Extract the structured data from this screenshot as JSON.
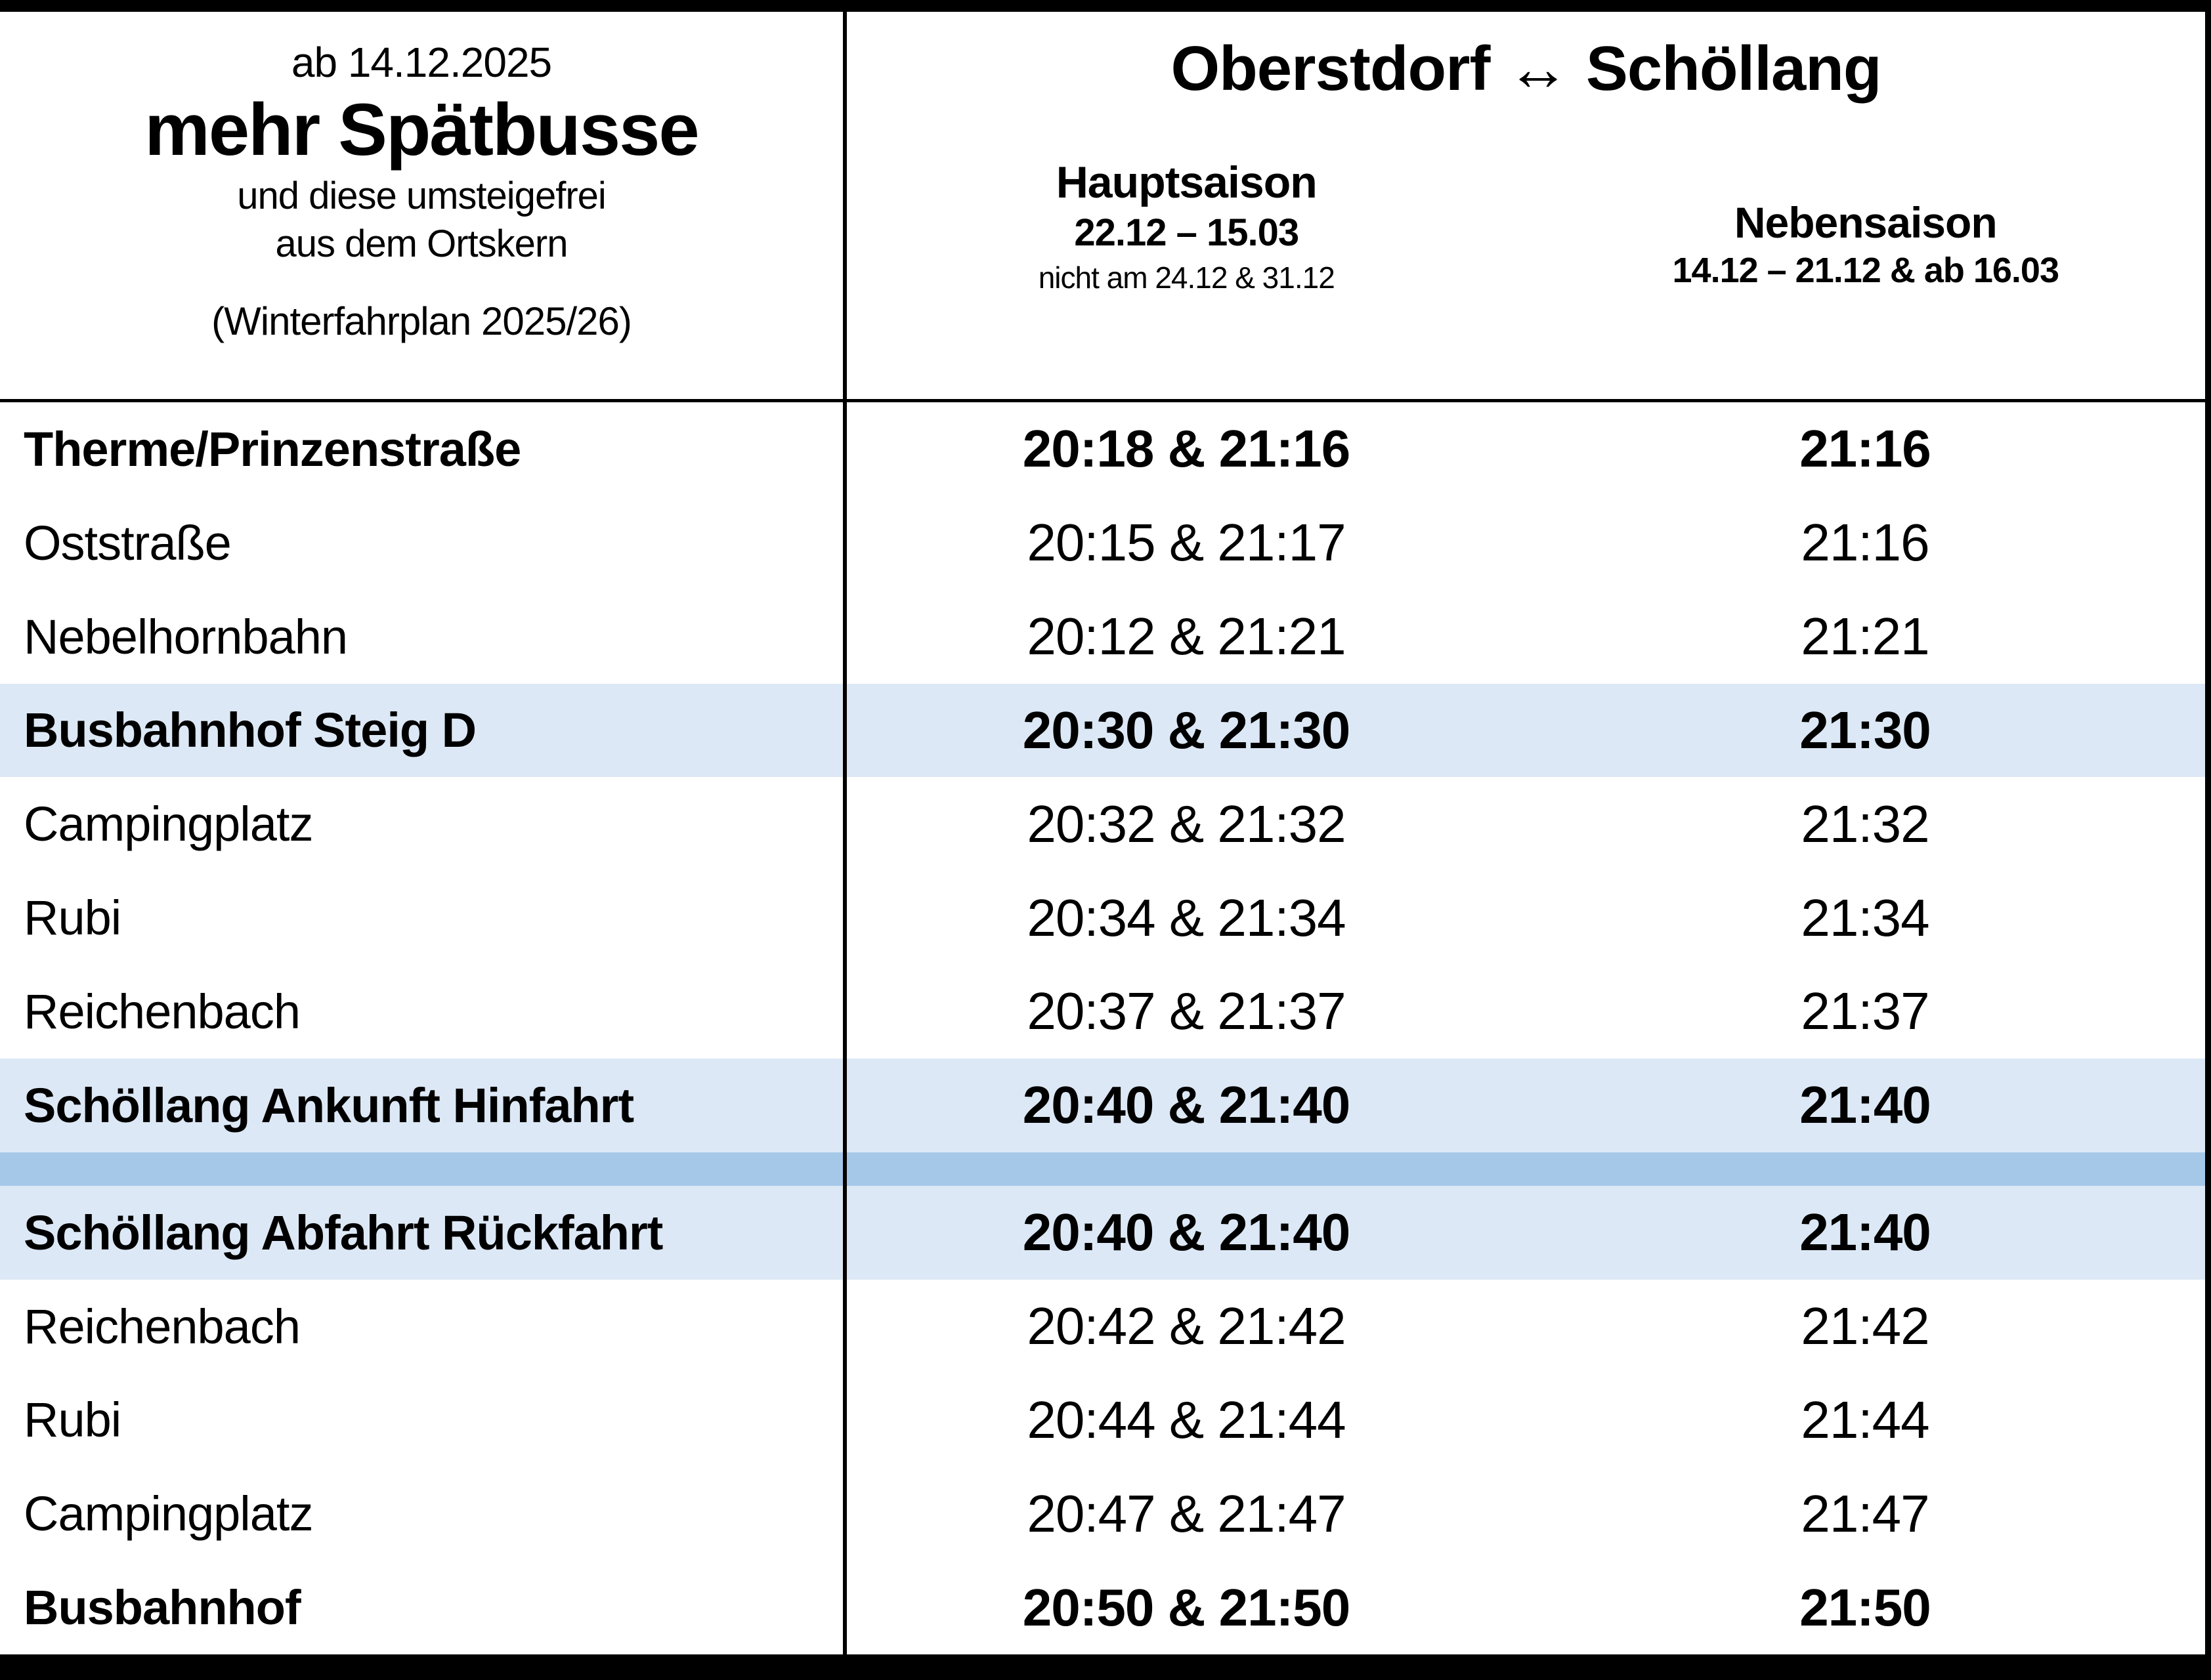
{
  "header_left": {
    "valid_from": "ab 14.12.2025",
    "title": "mehr Spätbusse",
    "subtitle1": "und diese umsteigefrei",
    "subtitle2": "aus dem Ortskern",
    "note": "(Winterfahrplan 2025/26)"
  },
  "header_right": {
    "title": "Oberstdorf ↔ Schöllang",
    "hauptsaison": {
      "name": "Hauptsaison",
      "dates": "22.12 – 15.03",
      "note": "nicht am 24.12 & 31.12"
    },
    "nebensaison": {
      "name": "Nebensaison",
      "dates": "14.12 – 21.12 & ab 16.03"
    }
  },
  "colors": {
    "row_highlight": "#dce8f5",
    "separator_band": "#a5c8e9",
    "frame": "#000000"
  },
  "rows": [
    {
      "stop": "Therme/Prinzenstraße",
      "hauptsaison": "20:18 & 21:16",
      "nebensaison": "21:16",
      "bold": true,
      "highlight": false
    },
    {
      "stop": "Oststraße",
      "hauptsaison": "20:15 & 21:17",
      "nebensaison": "21:16",
      "bold": false,
      "highlight": false
    },
    {
      "stop": "Nebelhornbahn",
      "hauptsaison": "20:12 & 21:21",
      "nebensaison": "21:21",
      "bold": false,
      "highlight": false
    },
    {
      "stop": "Busbahnhof Steig D",
      "hauptsaison": "20:30 & 21:30",
      "nebensaison": "21:30",
      "bold": true,
      "highlight": true
    },
    {
      "stop": "Campingplatz",
      "hauptsaison": "20:32 & 21:32",
      "nebensaison": "21:32",
      "bold": false,
      "highlight": false
    },
    {
      "stop": "Rubi",
      "hauptsaison": "20:34 & 21:34",
      "nebensaison": "21:34",
      "bold": false,
      "highlight": false
    },
    {
      "stop": "Reichenbach",
      "hauptsaison": "20:37 & 21:37",
      "nebensaison": "21:37",
      "bold": false,
      "highlight": false
    },
    {
      "stop": "Schöllang Ankunft Hinfahrt",
      "hauptsaison": "20:40 & 21:40",
      "nebensaison": "21:40",
      "bold": true,
      "highlight": true
    },
    {
      "stop": "Schöllang Abfahrt Rückfahrt",
      "hauptsaison": "20:40 & 21:40",
      "nebensaison": "21:40",
      "bold": true,
      "highlight": true
    },
    {
      "stop": "Reichenbach",
      "hauptsaison": "20:42 & 21:42",
      "nebensaison": "21:42",
      "bold": false,
      "highlight": false
    },
    {
      "stop": "Rubi",
      "hauptsaison": "20:44 & 21:44",
      "nebensaison": "21:44",
      "bold": false,
      "highlight": false
    },
    {
      "stop": "Campingplatz",
      "hauptsaison": "20:47 & 21:47",
      "nebensaison": "21:47",
      "bold": false,
      "highlight": false
    },
    {
      "stop": "Busbahnhof",
      "hauptsaison": "20:50 & 21:50",
      "nebensaison": "21:50",
      "bold": true,
      "highlight": false
    }
  ],
  "separator_after_row_index": 7
}
